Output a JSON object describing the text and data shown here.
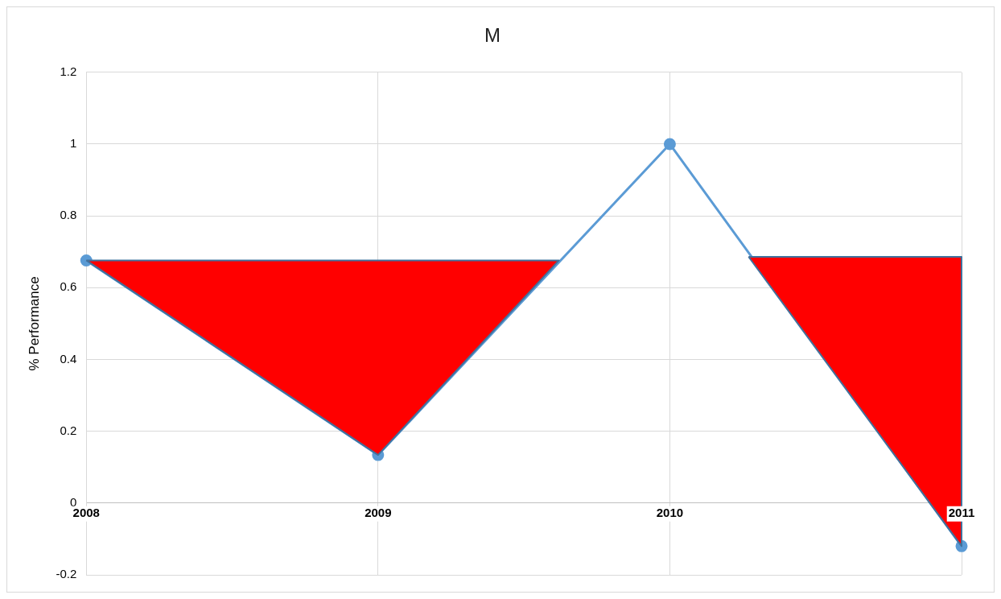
{
  "chart_data": {
    "type": "line",
    "title": "M",
    "ylabel": "% Performance",
    "x": [
      2008,
      2009,
      2010,
      2011
    ],
    "series": [
      {
        "type": "line",
        "color": "#5b9bd5",
        "values": [
          0.676,
          0.134,
          1,
          -0.12
        ],
        "marker": "circle"
      },
      {
        "type": "area",
        "color": "#ff0000",
        "x": [
          2008,
          2009,
          2009.62,
          2008
        ],
        "values": [
          0.676,
          0.134,
          0.676,
          0.676
        ]
      },
      {
        "type": "area",
        "color": "#ff0000",
        "x": [
          2010.27,
          2011,
          2011,
          2010.27
        ],
        "values": [
          0.686,
          -0.12,
          0.686,
          0.686
        ]
      }
    ],
    "xlim": [
      2008,
      2011
    ],
    "xticks": [
      2008,
      2009,
      2010,
      2011
    ],
    "ylim": [
      -0.2,
      1.2
    ],
    "yticks": [
      -0.2,
      0,
      0.2,
      0.4,
      0.6,
      0.8,
      1,
      1.2
    ],
    "grid": true,
    "legend": false,
    "line_style": "solid"
  }
}
